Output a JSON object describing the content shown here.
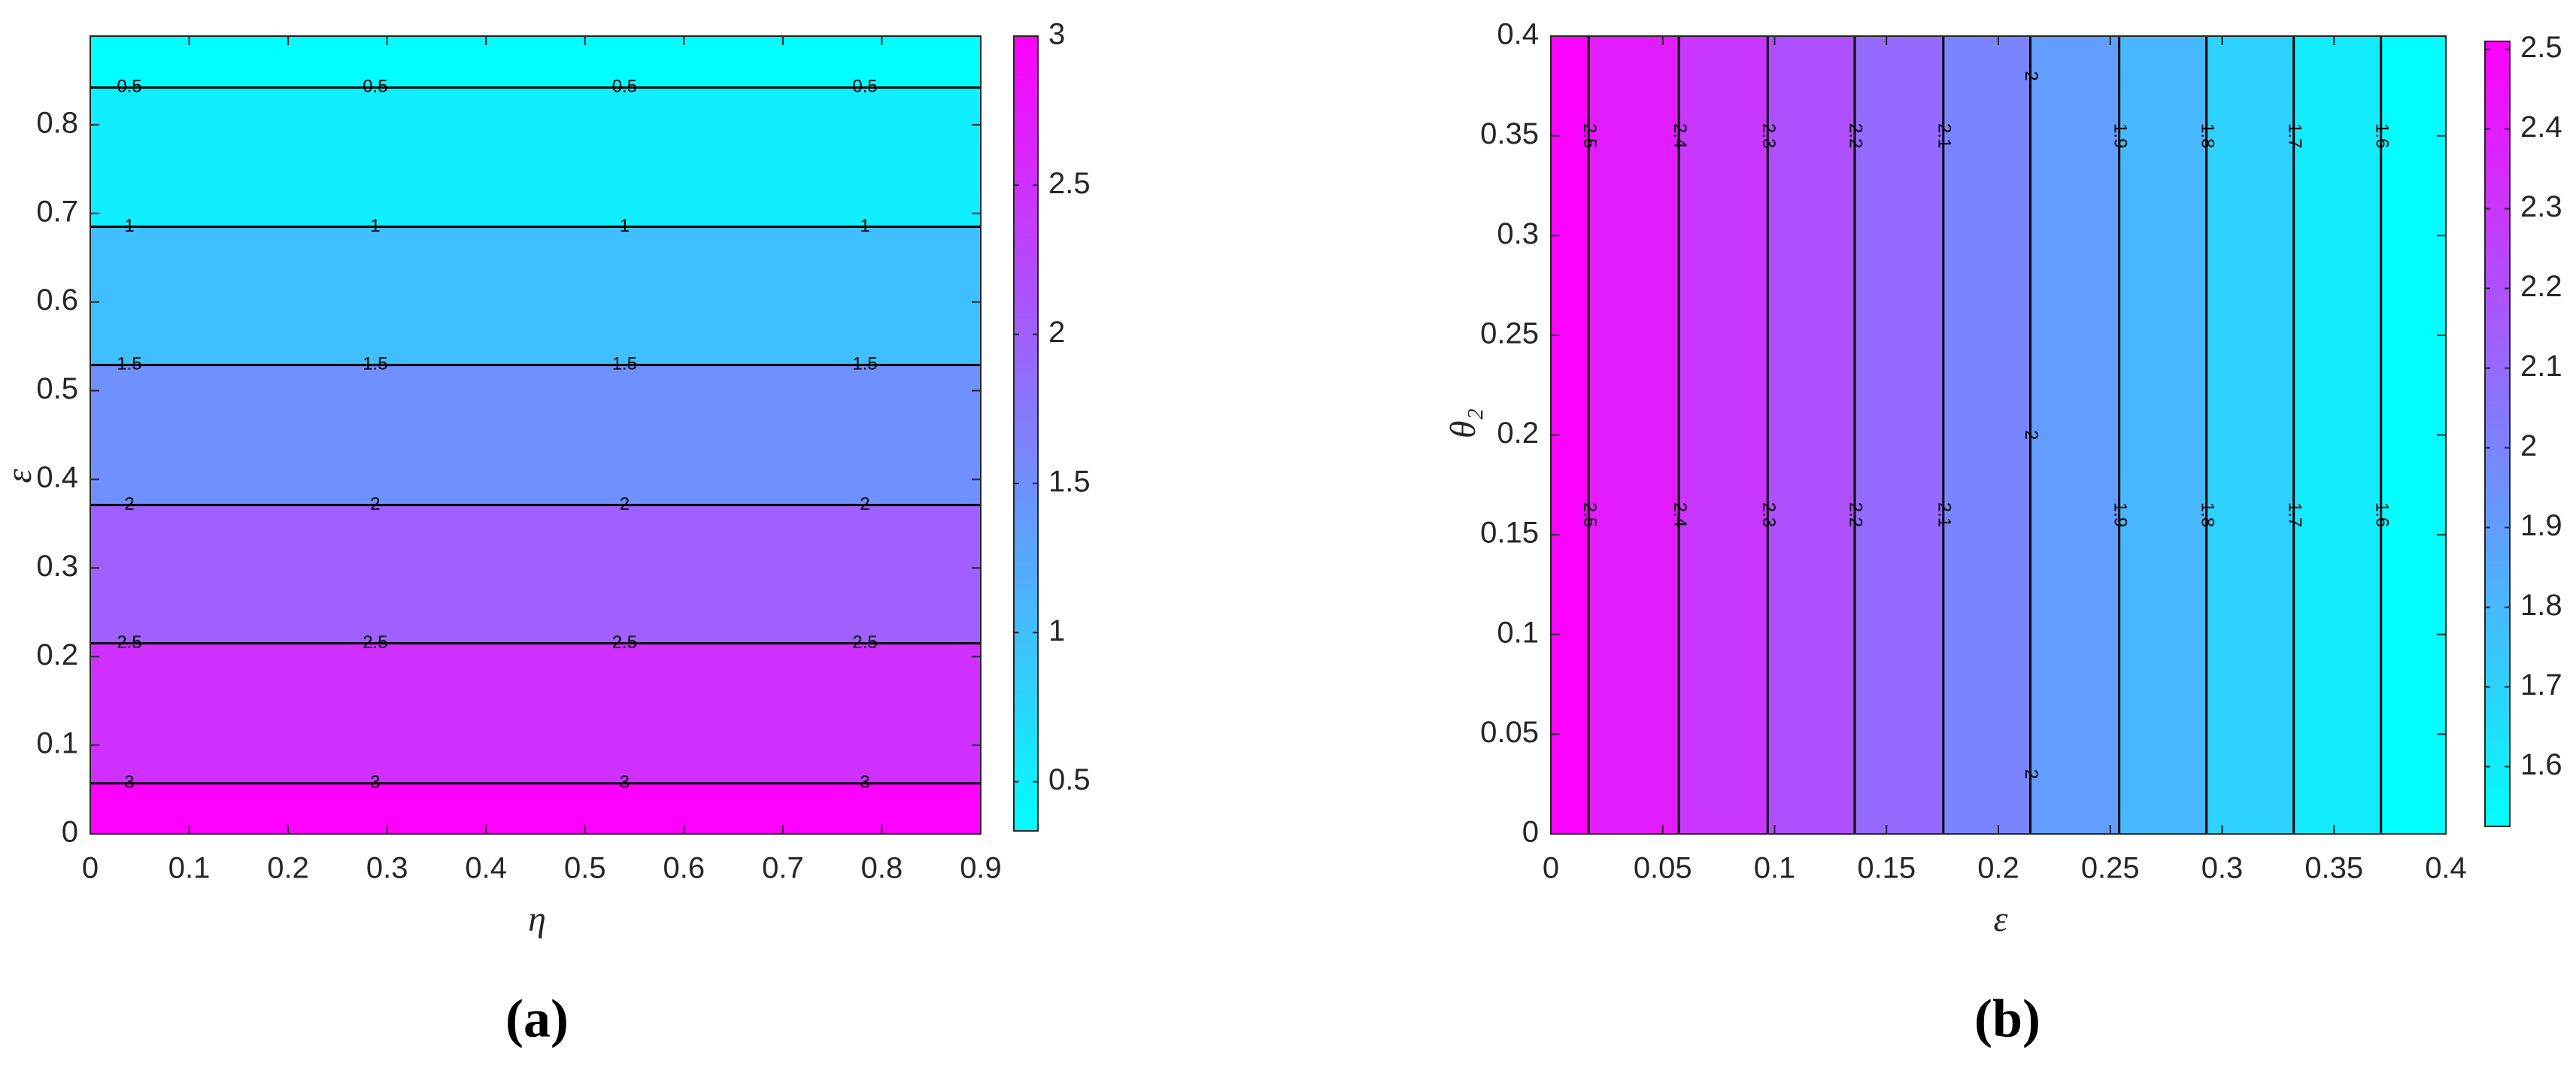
{
  "chart_data": [
    {
      "type": "contour",
      "caption": "(a)",
      "xlabel": "η",
      "ylabel": "ε",
      "xlim": [
        0,
        0.9
      ],
      "xticks": [
        0,
        0.1,
        0.2,
        0.3,
        0.4,
        0.5,
        0.6,
        0.7,
        0.8,
        0.9
      ],
      "ylim": [
        0,
        0.9
      ],
      "yticks": [
        0,
        0.1,
        0.2,
        0.3,
        0.4,
        0.5,
        0.6,
        0.7,
        0.8
      ],
      "varies_along": "y",
      "colormap": "cool",
      "levels": [
        0.5,
        1,
        1.5,
        2,
        2.5,
        3
      ],
      "level_positions": [
        0.842,
        0.685,
        0.529,
        0.371,
        0.215,
        0.057
      ],
      "clim": [
        0.335,
        3
      ],
      "cticks": [
        0.5,
        1,
        1.5,
        2,
        2.5,
        3
      ]
    },
    {
      "type": "contour",
      "caption": "(b)",
      "xlabel": "ε",
      "ylabel": "θ₂",
      "xlim": [
        0,
        0.4
      ],
      "xticks": [
        0,
        0.05,
        0.1,
        0.15,
        0.2,
        0.25,
        0.3,
        0.35,
        0.4
      ],
      "ylim": [
        0,
        0.4
      ],
      "yticks": [
        0,
        0.05,
        0.1,
        0.15,
        0.2,
        0.25,
        0.3,
        0.35,
        0.4
      ],
      "varies_along": "x",
      "colormap": "cool",
      "levels": [
        2.5,
        2.4,
        2.3,
        2.2,
        2.1,
        2,
        1.9,
        1.8,
        1.7,
        1.6
      ],
      "level_positions": [
        0.0169,
        0.0572,
        0.0969,
        0.1358,
        0.1754,
        0.2143,
        0.254,
        0.293,
        0.332,
        0.371
      ],
      "clim": [
        1.525,
        2.51
      ],
      "cticks": [
        1.6,
        1.7,
        1.8,
        1.9,
        2,
        2.1,
        2.2,
        2.3,
        2.4,
        2.5
      ]
    }
  ]
}
